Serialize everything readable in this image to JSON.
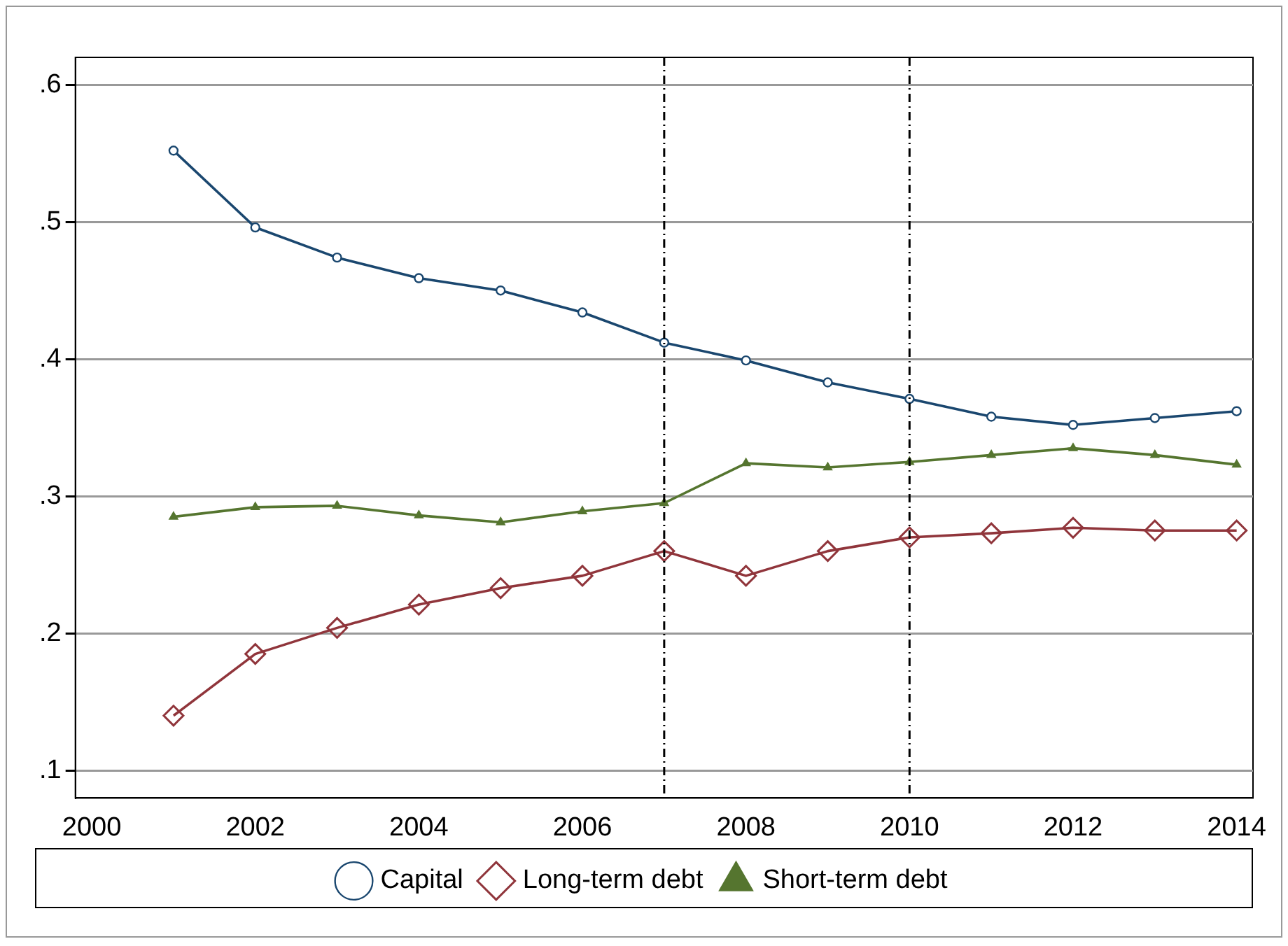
{
  "chart_data": {
    "type": "line",
    "x": [
      2001,
      2002,
      2003,
      2004,
      2005,
      2006,
      2007,
      2008,
      2009,
      2010,
      2011,
      2012,
      2013,
      2014
    ],
    "series": [
      {
        "name": "Capital",
        "color": "#1a476f",
        "marker": "circle",
        "values": [
          0.552,
          0.496,
          0.474,
          0.459,
          0.45,
          0.434,
          0.412,
          0.399,
          0.383,
          0.371,
          0.358,
          0.352,
          0.357,
          0.362
        ]
      },
      {
        "name": "Long-term debt",
        "color": "#90353b",
        "marker": "diamond",
        "values": [
          0.14,
          0.185,
          0.204,
          0.221,
          0.233,
          0.242,
          0.26,
          0.242,
          0.26,
          0.27,
          0.273,
          0.277,
          0.275,
          0.275
        ]
      },
      {
        "name": "Short-term debt",
        "color": "#55752f",
        "marker": "triangle",
        "values": [
          0.285,
          0.292,
          0.293,
          0.286,
          0.281,
          0.289,
          0.295,
          0.324,
          0.321,
          0.325,
          0.33,
          0.335,
          0.33,
          0.323
        ]
      }
    ],
    "xlim": [
      1999.8,
      2014.2
    ],
    "xticks": [
      2000,
      2002,
      2004,
      2006,
      2008,
      2010,
      2012,
      2014
    ],
    "ylim": [
      0.08,
      0.62
    ],
    "yticks": [
      {
        "value": 0.1,
        "label": ".1"
      },
      {
        "value": 0.2,
        "label": ".2"
      },
      {
        "value": 0.3,
        "label": ".3"
      },
      {
        "value": 0.4,
        "label": ".4"
      },
      {
        "value": 0.5,
        "label": ".5"
      },
      {
        "value": 0.6,
        "label": ".6"
      }
    ],
    "ref_lines": [
      {
        "axis": "x",
        "value": 2007,
        "color": "#000000",
        "line_style": "dashdot"
      },
      {
        "axis": "x",
        "value": 2010,
        "color": "#000000",
        "line_style": "dashdot"
      }
    ],
    "grid": "y",
    "legend": "bottom",
    "line_style": "solid"
  }
}
